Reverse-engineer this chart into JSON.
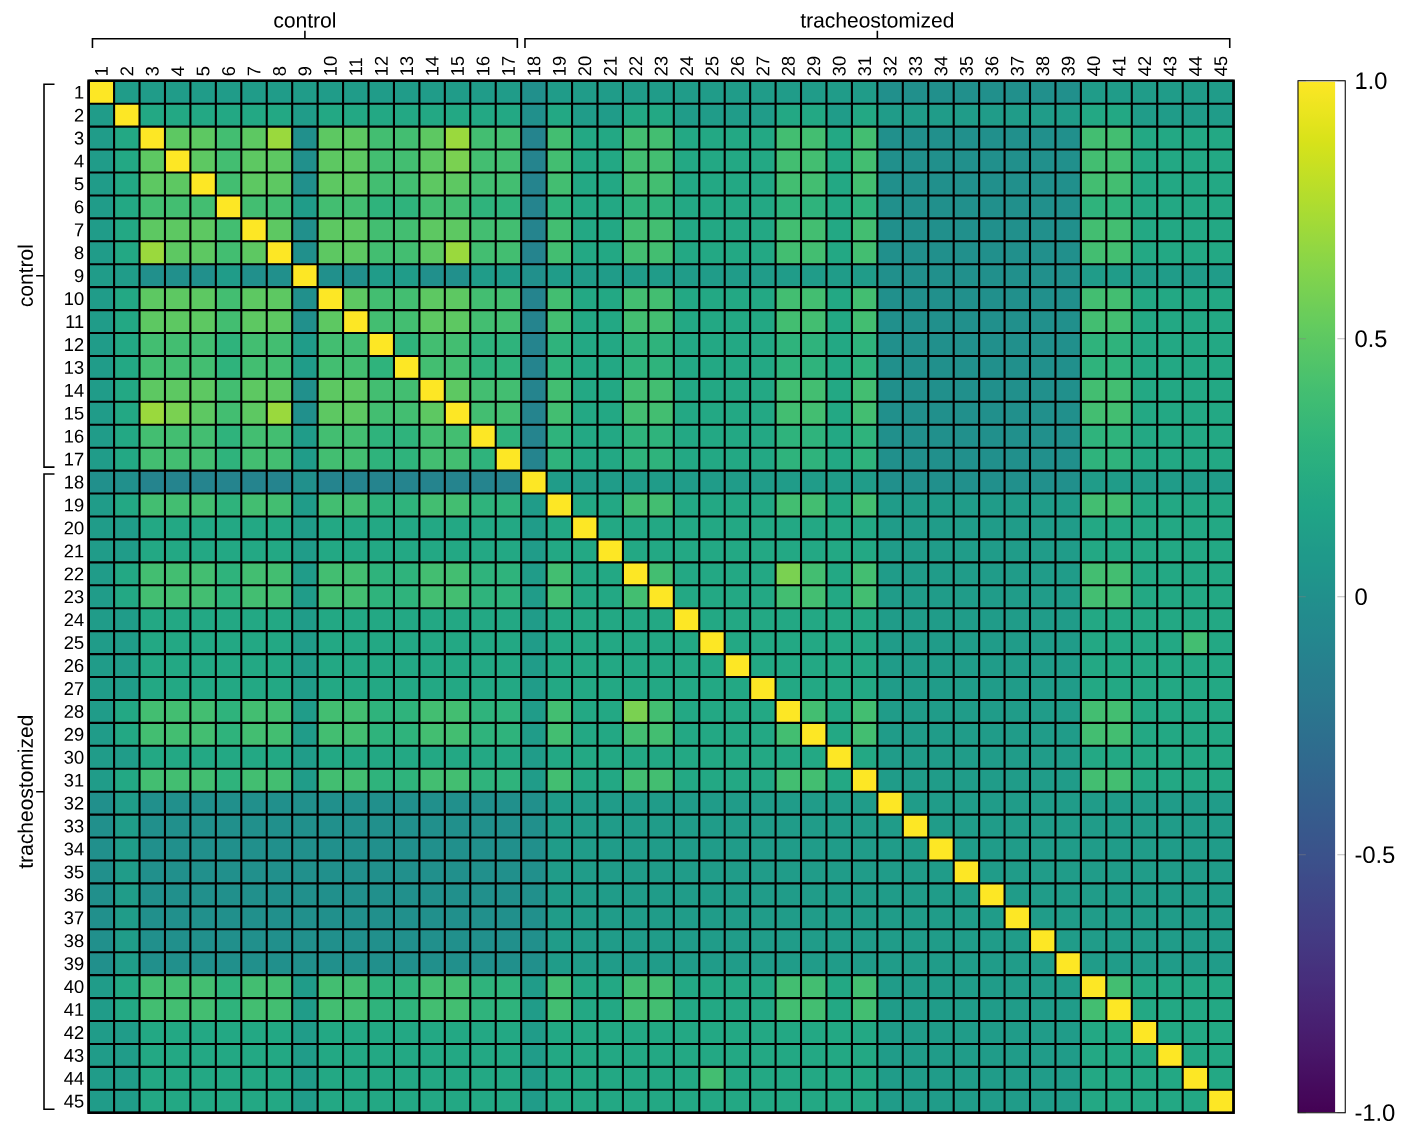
{
  "chart_data": {
    "type": "heatmap",
    "categories": [
      "1",
      "2",
      "3",
      "4",
      "5",
      "6",
      "7",
      "8",
      "9",
      "10",
      "11",
      "12",
      "13",
      "14",
      "15",
      "16",
      "17",
      "18",
      "19",
      "20",
      "21",
      "22",
      "23",
      "24",
      "25",
      "26",
      "27",
      "28",
      "29",
      "30",
      "31",
      "32",
      "33",
      "34",
      "35",
      "36",
      "37",
      "38",
      "39",
      "40",
      "41",
      "42",
      "43",
      "44",
      "45"
    ],
    "y_categories": [
      "1",
      "2",
      "3",
      "4",
      "5",
      "6",
      "7",
      "8",
      "9",
      "10",
      "11",
      "12",
      "13",
      "14",
      "15",
      "16",
      "17",
      "18",
      "19",
      "20",
      "21",
      "22",
      "23",
      "24",
      "25",
      "26",
      "27",
      "28",
      "29",
      "30",
      "31",
      "32",
      "33",
      "34",
      "35",
      "36",
      "37",
      "38",
      "39",
      "40",
      "41",
      "42",
      "43",
      "44",
      "45"
    ],
    "clim": [
      -1,
      1
    ],
    "cticks": [
      {
        "value": -1,
        "label": "-1.0"
      },
      -0.5,
      0,
      0.5,
      {
        "value": 1,
        "label": "1.0"
      }
    ],
    "annotations": [
      "control",
      "tracheostomized",
      "control",
      "tracheostomized"
    ],
    "cells": [
      [
        1,
        0.1,
        0.1,
        0.1,
        0.1,
        0.1,
        0.1,
        0.1,
        0.1,
        0.1,
        0.1,
        0.1,
        0.1,
        0.1,
        0.1,
        0.1,
        0.1,
        0,
        0.1,
        0.1,
        0.1,
        0.1,
        0.1,
        0.1,
        0.1,
        0.1,
        0.1,
        0.1,
        0.1,
        0.1,
        0.1,
        0,
        0,
        0,
        0,
        0,
        0,
        0,
        0,
        0.1,
        0.1,
        0.1,
        0.1,
        0.1,
        0.1
      ],
      [
        0.1,
        1,
        0.2,
        0.2,
        0.2,
        0.2,
        0.2,
        0.2,
        0.1,
        0.2,
        0.2,
        0.2,
        0.2,
        0.2,
        0.2,
        0.2,
        0.2,
        0,
        0.2,
        0.1,
        0.1,
        0.2,
        0.2,
        0.1,
        0.1,
        0.1,
        0.1,
        0.2,
        0.2,
        0.1,
        0.2,
        0.1,
        0.1,
        0.1,
        0.1,
        0.1,
        0.1,
        0.1,
        0.1,
        0.2,
        0.2,
        0.1,
        0.1,
        0.1,
        0.1
      ],
      [
        0.1,
        0.2,
        1,
        0.5,
        0.5,
        0.4,
        0.5,
        0.7,
        0,
        0.5,
        0.5,
        0.4,
        0.4,
        0.5,
        0.7,
        0.4,
        0.4,
        -0.1,
        0.4,
        0.2,
        0.2,
        0.4,
        0.4,
        0.2,
        0.2,
        0.2,
        0.2,
        0.4,
        0.4,
        0.2,
        0.4,
        0,
        0,
        0,
        0,
        0,
        0,
        0,
        0,
        0.4,
        0.4,
        0.2,
        0.2,
        0.2,
        0.2
      ],
      [
        0.1,
        0.2,
        0.5,
        1,
        0.5,
        0.4,
        0.5,
        0.5,
        0,
        0.5,
        0.5,
        0.4,
        0.4,
        0.5,
        0.6,
        0.4,
        0.4,
        -0.1,
        0.4,
        0.2,
        0.2,
        0.4,
        0.4,
        0.2,
        0.2,
        0.2,
        0.2,
        0.4,
        0.4,
        0.2,
        0.4,
        0,
        0,
        0,
        0,
        0,
        0,
        0,
        0,
        0.4,
        0.4,
        0.2,
        0.2,
        0.2,
        0.2
      ],
      [
        0.1,
        0.2,
        0.5,
        0.5,
        1,
        0.4,
        0.5,
        0.5,
        0,
        0.5,
        0.5,
        0.4,
        0.4,
        0.5,
        0.5,
        0.4,
        0.4,
        -0.1,
        0.4,
        0.2,
        0.2,
        0.4,
        0.4,
        0.2,
        0.2,
        0.2,
        0.2,
        0.4,
        0.4,
        0.2,
        0.4,
        0,
        0,
        0,
        0,
        0,
        0,
        0,
        0,
        0.4,
        0.4,
        0.2,
        0.2,
        0.2,
        0.2
      ],
      [
        0.1,
        0.2,
        0.4,
        0.4,
        0.4,
        1,
        0.4,
        0.4,
        0.1,
        0.4,
        0.4,
        0.3,
        0.3,
        0.4,
        0.4,
        0.3,
        0.3,
        -0.1,
        0.3,
        0.2,
        0.2,
        0.3,
        0.3,
        0.2,
        0.2,
        0.2,
        0.2,
        0.3,
        0.3,
        0.2,
        0.3,
        0,
        0,
        0,
        0,
        0,
        0,
        0,
        0,
        0.3,
        0.3,
        0.2,
        0.2,
        0.2,
        0.2
      ],
      [
        0.1,
        0.2,
        0.5,
        0.5,
        0.5,
        0.4,
        1,
        0.5,
        0,
        0.5,
        0.5,
        0.4,
        0.4,
        0.5,
        0.5,
        0.4,
        0.4,
        -0.1,
        0.4,
        0.2,
        0.2,
        0.4,
        0.4,
        0.2,
        0.2,
        0.2,
        0.2,
        0.4,
        0.4,
        0.2,
        0.4,
        0,
        0,
        0,
        0,
        0,
        0,
        0,
        0,
        0.4,
        0.4,
        0.2,
        0.2,
        0.2,
        0.2
      ],
      [
        0.1,
        0.2,
        0.7,
        0.5,
        0.5,
        0.4,
        0.5,
        1,
        0,
        0.5,
        0.5,
        0.4,
        0.4,
        0.5,
        0.7,
        0.4,
        0.4,
        -0.1,
        0.4,
        0.2,
        0.2,
        0.4,
        0.4,
        0.2,
        0.2,
        0.2,
        0.2,
        0.4,
        0.4,
        0.2,
        0.4,
        0,
        0,
        0,
        0,
        0,
        0,
        0,
        0,
        0.4,
        0.4,
        0.2,
        0.2,
        0.2,
        0.2
      ],
      [
        0.1,
        0.1,
        0,
        0,
        0,
        0.1,
        0,
        0,
        1,
        0,
        0,
        0.1,
        0.1,
        0,
        0,
        0.1,
        0.1,
        0,
        0.1,
        0.1,
        0.1,
        0.1,
        0.1,
        0.1,
        0.1,
        0.1,
        0.1,
        0.1,
        0.1,
        0.1,
        0.1,
        0,
        0,
        0,
        0,
        0,
        0,
        0,
        0,
        0.1,
        0.1,
        0.1,
        0.1,
        0.1,
        0.1
      ],
      [
        0.1,
        0.2,
        0.5,
        0.5,
        0.5,
        0.4,
        0.5,
        0.5,
        0,
        1,
        0.5,
        0.4,
        0.4,
        0.5,
        0.5,
        0.4,
        0.4,
        -0.1,
        0.4,
        0.2,
        0.2,
        0.4,
        0.4,
        0.2,
        0.2,
        0.2,
        0.2,
        0.4,
        0.4,
        0.2,
        0.4,
        0,
        0,
        0,
        0,
        0,
        0,
        0,
        0,
        0.4,
        0.4,
        0.2,
        0.2,
        0.2,
        0.2
      ],
      [
        0.1,
        0.2,
        0.5,
        0.5,
        0.5,
        0.4,
        0.5,
        0.5,
        0,
        0.5,
        1,
        0.4,
        0.4,
        0.5,
        0.5,
        0.4,
        0.4,
        -0.1,
        0.4,
        0.2,
        0.2,
        0.4,
        0.4,
        0.2,
        0.2,
        0.2,
        0.2,
        0.4,
        0.4,
        0.2,
        0.4,
        0,
        0,
        0,
        0,
        0,
        0,
        0,
        0,
        0.4,
        0.4,
        0.2,
        0.2,
        0.2,
        0.2
      ],
      [
        0.1,
        0.2,
        0.4,
        0.4,
        0.4,
        0.3,
        0.4,
        0.4,
        0.1,
        0.4,
        0.4,
        1,
        0.3,
        0.4,
        0.4,
        0.3,
        0.3,
        -0.1,
        0.3,
        0.2,
        0.2,
        0.3,
        0.3,
        0.2,
        0.2,
        0.2,
        0.2,
        0.3,
        0.3,
        0.2,
        0.3,
        0,
        0,
        0,
        0,
        0,
        0,
        0,
        0,
        0.3,
        0.3,
        0.2,
        0.2,
        0.2,
        0.2
      ],
      [
        0.1,
        0.2,
        0.4,
        0.4,
        0.4,
        0.3,
        0.4,
        0.4,
        0.1,
        0.4,
        0.4,
        0.3,
        1,
        0.4,
        0.4,
        0.3,
        0.3,
        -0.1,
        0.3,
        0.2,
        0.2,
        0.3,
        0.3,
        0.2,
        0.2,
        0.2,
        0.2,
        0.3,
        0.3,
        0.2,
        0.3,
        0,
        0,
        0,
        0,
        0,
        0,
        0,
        0,
        0.3,
        0.3,
        0.2,
        0.2,
        0.2,
        0.2
      ],
      [
        0.1,
        0.2,
        0.5,
        0.5,
        0.5,
        0.4,
        0.5,
        0.5,
        0,
        0.5,
        0.5,
        0.4,
        0.4,
        1,
        0.5,
        0.4,
        0.4,
        -0.1,
        0.4,
        0.2,
        0.2,
        0.4,
        0.4,
        0.2,
        0.2,
        0.2,
        0.2,
        0.4,
        0.4,
        0.2,
        0.4,
        0,
        0,
        0,
        0,
        0,
        0,
        0,
        0,
        0.4,
        0.4,
        0.2,
        0.2,
        0.2,
        0.2
      ],
      [
        0.1,
        0.2,
        0.7,
        0.6,
        0.5,
        0.4,
        0.5,
        0.7,
        0,
        0.5,
        0.5,
        0.4,
        0.4,
        0.5,
        1,
        0.4,
        0.4,
        -0.1,
        0.4,
        0.2,
        0.2,
        0.4,
        0.4,
        0.2,
        0.2,
        0.2,
        0.2,
        0.4,
        0.4,
        0.2,
        0.4,
        0,
        0,
        0,
        0,
        0,
        0,
        0,
        0,
        0.4,
        0.4,
        0.2,
        0.2,
        0.2,
        0.2
      ],
      [
        0.1,
        0.2,
        0.4,
        0.4,
        0.4,
        0.3,
        0.4,
        0.4,
        0.1,
        0.4,
        0.4,
        0.3,
        0.3,
        0.4,
        0.4,
        1,
        0.3,
        -0.1,
        0.3,
        0.2,
        0.2,
        0.3,
        0.3,
        0.2,
        0.2,
        0.2,
        0.2,
        0.3,
        0.3,
        0.2,
        0.3,
        0,
        0,
        0,
        0,
        0,
        0,
        0,
        0,
        0.3,
        0.3,
        0.2,
        0.2,
        0.2,
        0.2
      ],
      [
        0.1,
        0.2,
        0.4,
        0.4,
        0.4,
        0.3,
        0.4,
        0.4,
        0.1,
        0.4,
        0.4,
        0.3,
        0.3,
        0.4,
        0.4,
        0.3,
        1,
        -0.1,
        0.3,
        0.2,
        0.2,
        0.3,
        0.3,
        0.2,
        0.2,
        0.2,
        0.2,
        0.3,
        0.3,
        0.2,
        0.3,
        0,
        0,
        0,
        0,
        0,
        0,
        0,
        0,
        0.3,
        0.3,
        0.2,
        0.2,
        0.2,
        0.2
      ],
      [
        0,
        0,
        -0.1,
        -0.1,
        -0.1,
        -0.1,
        -0.1,
        -0.1,
        0,
        -0.1,
        -0.1,
        -0.1,
        -0.1,
        -0.1,
        -0.1,
        -0.1,
        -0.1,
        1,
        0.1,
        0.1,
        0.1,
        0.1,
        0.1,
        0.1,
        0.1,
        0.1,
        0.1,
        0.1,
        0.1,
        0.1,
        0.1,
        0,
        0,
        0,
        0,
        0,
        0,
        0,
        0,
        0.1,
        0.1,
        0.1,
        0.1,
        0.1,
        0.1
      ],
      [
        0.1,
        0.2,
        0.4,
        0.4,
        0.4,
        0.3,
        0.4,
        0.4,
        0.1,
        0.4,
        0.4,
        0.3,
        0.3,
        0.4,
        0.4,
        0.3,
        0.3,
        0.1,
        1,
        0.2,
        0.2,
        0.4,
        0.4,
        0.2,
        0.2,
        0.2,
        0.2,
        0.4,
        0.4,
        0.2,
        0.4,
        0.1,
        0.1,
        0.1,
        0.1,
        0.1,
        0.1,
        0.1,
        0.1,
        0.4,
        0.4,
        0.2,
        0.2,
        0.2,
        0.2
      ],
      [
        0.1,
        0.1,
        0.2,
        0.2,
        0.2,
        0.2,
        0.2,
        0.2,
        0.1,
        0.2,
        0.2,
        0.2,
        0.2,
        0.2,
        0.2,
        0.2,
        0.2,
        0.1,
        0.2,
        1,
        0.2,
        0.2,
        0.2,
        0.2,
        0.2,
        0.2,
        0.2,
        0.2,
        0.2,
        0.2,
        0.2,
        0.1,
        0.1,
        0.1,
        0.1,
        0.1,
        0.1,
        0.1,
        0.1,
        0.2,
        0.2,
        0.2,
        0.2,
        0.2,
        0.2
      ],
      [
        0.1,
        0.1,
        0.2,
        0.2,
        0.2,
        0.2,
        0.2,
        0.2,
        0.1,
        0.2,
        0.2,
        0.2,
        0.2,
        0.2,
        0.2,
        0.2,
        0.2,
        0.1,
        0.2,
        0.2,
        1,
        0.2,
        0.2,
        0.2,
        0.2,
        0.2,
        0.2,
        0.2,
        0.2,
        0.2,
        0.2,
        0.1,
        0.1,
        0.1,
        0.1,
        0.1,
        0.1,
        0.1,
        0.1,
        0.2,
        0.2,
        0.2,
        0.2,
        0.2,
        0.2
      ],
      [
        0.1,
        0.2,
        0.4,
        0.4,
        0.4,
        0.3,
        0.4,
        0.4,
        0.1,
        0.4,
        0.4,
        0.3,
        0.3,
        0.4,
        0.4,
        0.3,
        0.3,
        0.1,
        0.4,
        0.2,
        0.2,
        1,
        0.4,
        0.2,
        0.2,
        0.2,
        0.2,
        0.6,
        0.4,
        0.2,
        0.4,
        0.1,
        0.1,
        0.1,
        0.1,
        0.1,
        0.1,
        0.1,
        0.1,
        0.4,
        0.4,
        0.2,
        0.2,
        0.2,
        0.2
      ],
      [
        0.1,
        0.2,
        0.4,
        0.4,
        0.4,
        0.3,
        0.4,
        0.4,
        0.1,
        0.4,
        0.4,
        0.3,
        0.3,
        0.4,
        0.4,
        0.3,
        0.3,
        0.1,
        0.4,
        0.2,
        0.2,
        0.4,
        1,
        0.2,
        0.2,
        0.2,
        0.2,
        0.4,
        0.4,
        0.2,
        0.4,
        0.1,
        0.1,
        0.1,
        0.1,
        0.1,
        0.1,
        0.1,
        0.1,
        0.4,
        0.4,
        0.2,
        0.2,
        0.2,
        0.2
      ],
      [
        0.1,
        0.1,
        0.2,
        0.2,
        0.2,
        0.2,
        0.2,
        0.2,
        0.1,
        0.2,
        0.2,
        0.2,
        0.2,
        0.2,
        0.2,
        0.2,
        0.2,
        0.1,
        0.2,
        0.2,
        0.2,
        0.2,
        0.2,
        1,
        0.2,
        0.2,
        0.2,
        0.2,
        0.2,
        0.2,
        0.2,
        0.1,
        0.1,
        0.1,
        0.1,
        0.1,
        0.1,
        0.1,
        0.1,
        0.2,
        0.2,
        0.2,
        0.2,
        0.2,
        0.2
      ],
      [
        0.1,
        0.1,
        0.2,
        0.2,
        0.2,
        0.2,
        0.2,
        0.2,
        0.1,
        0.2,
        0.2,
        0.2,
        0.2,
        0.2,
        0.2,
        0.2,
        0.2,
        0.1,
        0.2,
        0.2,
        0.2,
        0.2,
        0.2,
        0.2,
        1,
        0.2,
        0.2,
        0.2,
        0.2,
        0.2,
        0.2,
        0.1,
        0.1,
        0.1,
        0.1,
        0.1,
        0.1,
        0.1,
        0.1,
        0.2,
        0.2,
        0.2,
        0.2,
        0.4,
        0.2
      ],
      [
        0.1,
        0.1,
        0.2,
        0.2,
        0.2,
        0.2,
        0.2,
        0.2,
        0.1,
        0.2,
        0.2,
        0.2,
        0.2,
        0.2,
        0.2,
        0.2,
        0.2,
        0.1,
        0.2,
        0.2,
        0.2,
        0.2,
        0.2,
        0.2,
        0.2,
        1,
        0.2,
        0.2,
        0.2,
        0.2,
        0.2,
        0.1,
        0.1,
        0.1,
        0.1,
        0.1,
        0.1,
        0.1,
        0.1,
        0.2,
        0.2,
        0.2,
        0.2,
        0.2,
        0.2
      ],
      [
        0.1,
        0.1,
        0.2,
        0.2,
        0.2,
        0.2,
        0.2,
        0.2,
        0.1,
        0.2,
        0.2,
        0.2,
        0.2,
        0.2,
        0.2,
        0.2,
        0.2,
        0.1,
        0.2,
        0.2,
        0.2,
        0.2,
        0.2,
        0.2,
        0.2,
        0.2,
        1,
        0.2,
        0.2,
        0.2,
        0.2,
        0.1,
        0.1,
        0.1,
        0.1,
        0.1,
        0.1,
        0.1,
        0.1,
        0.2,
        0.2,
        0.2,
        0.2,
        0.2,
        0.2
      ],
      [
        0.1,
        0.2,
        0.4,
        0.4,
        0.4,
        0.3,
        0.4,
        0.4,
        0.1,
        0.4,
        0.4,
        0.3,
        0.3,
        0.4,
        0.4,
        0.3,
        0.3,
        0.1,
        0.4,
        0.2,
        0.2,
        0.6,
        0.4,
        0.2,
        0.2,
        0.2,
        0.2,
        1,
        0.4,
        0.2,
        0.4,
        0.1,
        0.1,
        0.1,
        0.1,
        0.1,
        0.1,
        0.1,
        0.1,
        0.4,
        0.4,
        0.2,
        0.2,
        0.2,
        0.2
      ],
      [
        0.1,
        0.2,
        0.4,
        0.4,
        0.4,
        0.3,
        0.4,
        0.4,
        0.1,
        0.4,
        0.4,
        0.3,
        0.3,
        0.4,
        0.4,
        0.3,
        0.3,
        0.1,
        0.4,
        0.2,
        0.2,
        0.4,
        0.4,
        0.2,
        0.2,
        0.2,
        0.2,
        0.4,
        1,
        0.2,
        0.4,
        0.1,
        0.1,
        0.1,
        0.1,
        0.1,
        0.1,
        0.1,
        0.1,
        0.4,
        0.4,
        0.2,
        0.2,
        0.2,
        0.2
      ],
      [
        0.1,
        0.1,
        0.2,
        0.2,
        0.2,
        0.2,
        0.2,
        0.2,
        0.1,
        0.2,
        0.2,
        0.2,
        0.2,
        0.2,
        0.2,
        0.2,
        0.2,
        0.1,
        0.2,
        0.2,
        0.2,
        0.2,
        0.2,
        0.2,
        0.2,
        0.2,
        0.2,
        0.2,
        0.2,
        1,
        0.2,
        0.1,
        0.1,
        0.1,
        0.1,
        0.1,
        0.1,
        0.1,
        0.1,
        0.2,
        0.2,
        0.2,
        0.2,
        0.2,
        0.2
      ],
      [
        0.1,
        0.2,
        0.4,
        0.4,
        0.4,
        0.3,
        0.4,
        0.4,
        0.1,
        0.4,
        0.4,
        0.3,
        0.3,
        0.4,
        0.4,
        0.3,
        0.3,
        0.1,
        0.4,
        0.2,
        0.2,
        0.4,
        0.4,
        0.2,
        0.2,
        0.2,
        0.2,
        0.4,
        0.4,
        0.2,
        1,
        0.1,
        0.1,
        0.1,
        0.1,
        0.1,
        0.1,
        0.1,
        0.1,
        0.4,
        0.4,
        0.2,
        0.2,
        0.2,
        0.2
      ],
      [
        0,
        0.1,
        0,
        0,
        0,
        0,
        0,
        0,
        0,
        0,
        0,
        0,
        0,
        0,
        0,
        0,
        0,
        0,
        0.1,
        0.1,
        0.1,
        0.1,
        0.1,
        0.1,
        0.1,
        0.1,
        0.1,
        0.1,
        0.1,
        0.1,
        0.1,
        1,
        0.1,
        0.1,
        0.1,
        0.1,
        0.1,
        0.1,
        0.1,
        0.1,
        0.1,
        0.1,
        0.1,
        0.1,
        0.1
      ],
      [
        0,
        0.1,
        0,
        0,
        0,
        0,
        0,
        0,
        0,
        0,
        0,
        0,
        0,
        0,
        0,
        0,
        0,
        0,
        0.1,
        0.1,
        0.1,
        0.1,
        0.1,
        0.1,
        0.1,
        0.1,
        0.1,
        0.1,
        0.1,
        0.1,
        0.1,
        0.1,
        1,
        0.1,
        0.1,
        0.1,
        0.1,
        0.1,
        0.1,
        0.1,
        0.1,
        0.1,
        0.1,
        0.1,
        0.1
      ],
      [
        0,
        0.1,
        0,
        0,
        0,
        0,
        0,
        0,
        0,
        0,
        0,
        0,
        0,
        0,
        0,
        0,
        0,
        0,
        0.1,
        0.1,
        0.1,
        0.1,
        0.1,
        0.1,
        0.1,
        0.1,
        0.1,
        0.1,
        0.1,
        0.1,
        0.1,
        0.1,
        0.1,
        1,
        0.1,
        0.1,
        0.1,
        0.1,
        0.1,
        0.1,
        0.1,
        0.1,
        0.1,
        0.1,
        0.1
      ],
      [
        0,
        0.1,
        0,
        0,
        0,
        0,
        0,
        0,
        0,
        0,
        0,
        0,
        0,
        0,
        0,
        0,
        0,
        0,
        0.1,
        0.1,
        0.1,
        0.1,
        0.1,
        0.1,
        0.1,
        0.1,
        0.1,
        0.1,
        0.1,
        0.1,
        0.1,
        0.1,
        0.1,
        0.1,
        1,
        0.1,
        0.1,
        0.1,
        0.1,
        0.1,
        0.1,
        0.1,
        0.1,
        0.1,
        0.1
      ],
      [
        0,
        0.1,
        0,
        0,
        0,
        0,
        0,
        0,
        0,
        0,
        0,
        0,
        0,
        0,
        0,
        0,
        0,
        0,
        0.1,
        0.1,
        0.1,
        0.1,
        0.1,
        0.1,
        0.1,
        0.1,
        0.1,
        0.1,
        0.1,
        0.1,
        0.1,
        0.1,
        0.1,
        0.1,
        0.1,
        1,
        0.1,
        0.1,
        0.1,
        0.1,
        0.1,
        0.1,
        0.1,
        0.1,
        0.1
      ],
      [
        0,
        0.1,
        0,
        0,
        0,
        0,
        0,
        0,
        0,
        0,
        0,
        0,
        0,
        0,
        0,
        0,
        0,
        0,
        0.1,
        0.1,
        0.1,
        0.1,
        0.1,
        0.1,
        0.1,
        0.1,
        0.1,
        0.1,
        0.1,
        0.1,
        0.1,
        0.1,
        0.1,
        0.1,
        0.1,
        0.1,
        1,
        0.1,
        0.1,
        0.1,
        0.1,
        0.1,
        0.1,
        0.1,
        0.1
      ],
      [
        0,
        0.1,
        0,
        0,
        0,
        0,
        0,
        0,
        0,
        0,
        0,
        0,
        0,
        0,
        0,
        0,
        0,
        0,
        0.1,
        0.1,
        0.1,
        0.1,
        0.1,
        0.1,
        0.1,
        0.1,
        0.1,
        0.1,
        0.1,
        0.1,
        0.1,
        0.1,
        0.1,
        0.1,
        0.1,
        0.1,
        0.1,
        1,
        0.1,
        0.1,
        0.1,
        0.1,
        0.1,
        0.1,
        0.1
      ],
      [
        0,
        0.1,
        0,
        0,
        0,
        0,
        0,
        0,
        0,
        0,
        0,
        0,
        0,
        0,
        0,
        0,
        0,
        0,
        0.1,
        0.1,
        0.1,
        0.1,
        0.1,
        0.1,
        0.1,
        0.1,
        0.1,
        0.1,
        0.1,
        0.1,
        0.1,
        0.1,
        0.1,
        0.1,
        0.1,
        0.1,
        0.1,
        0.1,
        1,
        0.1,
        0.1,
        0.1,
        0.1,
        0.1,
        0.1
      ],
      [
        0.1,
        0.2,
        0.4,
        0.4,
        0.4,
        0.3,
        0.4,
        0.4,
        0.1,
        0.4,
        0.4,
        0.3,
        0.3,
        0.4,
        0.4,
        0.3,
        0.3,
        0.1,
        0.4,
        0.2,
        0.2,
        0.4,
        0.4,
        0.2,
        0.2,
        0.2,
        0.2,
        0.4,
        0.4,
        0.2,
        0.4,
        0.1,
        0.1,
        0.1,
        0.1,
        0.1,
        0.1,
        0.1,
        0.1,
        1,
        0.4,
        0.2,
        0.2,
        0.2,
        0.2
      ],
      [
        0.1,
        0.2,
        0.4,
        0.4,
        0.4,
        0.3,
        0.4,
        0.4,
        0.1,
        0.4,
        0.4,
        0.3,
        0.3,
        0.4,
        0.4,
        0.3,
        0.3,
        0.1,
        0.4,
        0.2,
        0.2,
        0.4,
        0.4,
        0.2,
        0.2,
        0.2,
        0.2,
        0.4,
        0.4,
        0.2,
        0.4,
        0.1,
        0.1,
        0.1,
        0.1,
        0.1,
        0.1,
        0.1,
        0.1,
        0.4,
        1,
        0.2,
        0.2,
        0.2,
        0.2
      ],
      [
        0.1,
        0.1,
        0.2,
        0.2,
        0.2,
        0.2,
        0.2,
        0.2,
        0.1,
        0.2,
        0.2,
        0.2,
        0.2,
        0.2,
        0.2,
        0.2,
        0.2,
        0.1,
        0.2,
        0.2,
        0.2,
        0.2,
        0.2,
        0.2,
        0.2,
        0.2,
        0.2,
        0.2,
        0.2,
        0.2,
        0.2,
        0.1,
        0.1,
        0.1,
        0.1,
        0.1,
        0.1,
        0.1,
        0.1,
        0.2,
        0.2,
        1,
        0.2,
        0.2,
        0.2
      ],
      [
        0.1,
        0.1,
        0.2,
        0.2,
        0.2,
        0.2,
        0.2,
        0.2,
        0.1,
        0.2,
        0.2,
        0.2,
        0.2,
        0.2,
        0.2,
        0.2,
        0.2,
        0.1,
        0.2,
        0.2,
        0.2,
        0.2,
        0.2,
        0.2,
        0.2,
        0.2,
        0.2,
        0.2,
        0.2,
        0.2,
        0.2,
        0.1,
        0.1,
        0.1,
        0.1,
        0.1,
        0.1,
        0.1,
        0.1,
        0.2,
        0.2,
        0.2,
        1,
        0.2,
        0.2
      ],
      [
        0.1,
        0.1,
        0.2,
        0.2,
        0.2,
        0.2,
        0.2,
        0.2,
        0.1,
        0.2,
        0.2,
        0.2,
        0.2,
        0.2,
        0.2,
        0.2,
        0.2,
        0.1,
        0.2,
        0.2,
        0.2,
        0.2,
        0.2,
        0.2,
        0.4,
        0.2,
        0.2,
        0.2,
        0.2,
        0.2,
        0.2,
        0.1,
        0.1,
        0.1,
        0.1,
        0.1,
        0.1,
        0.1,
        0.1,
        0.2,
        0.2,
        0.2,
        0.2,
        1,
        0.2
      ],
      [
        0.1,
        0.1,
        0.2,
        0.2,
        0.2,
        0.2,
        0.2,
        0.2,
        0.1,
        0.2,
        0.2,
        0.2,
        0.2,
        0.2,
        0.2,
        0.2,
        0.2,
        0.1,
        0.2,
        0.2,
        0.2,
        0.2,
        0.2,
        0.2,
        0.2,
        0.2,
        0.2,
        0.2,
        0.2,
        0.2,
        0.2,
        0.1,
        0.1,
        0.1,
        0.1,
        0.1,
        0.1,
        0.1,
        0.1,
        0.2,
        0.2,
        0.2,
        0.2,
        0.2,
        1
      ]
    ]
  }
}
